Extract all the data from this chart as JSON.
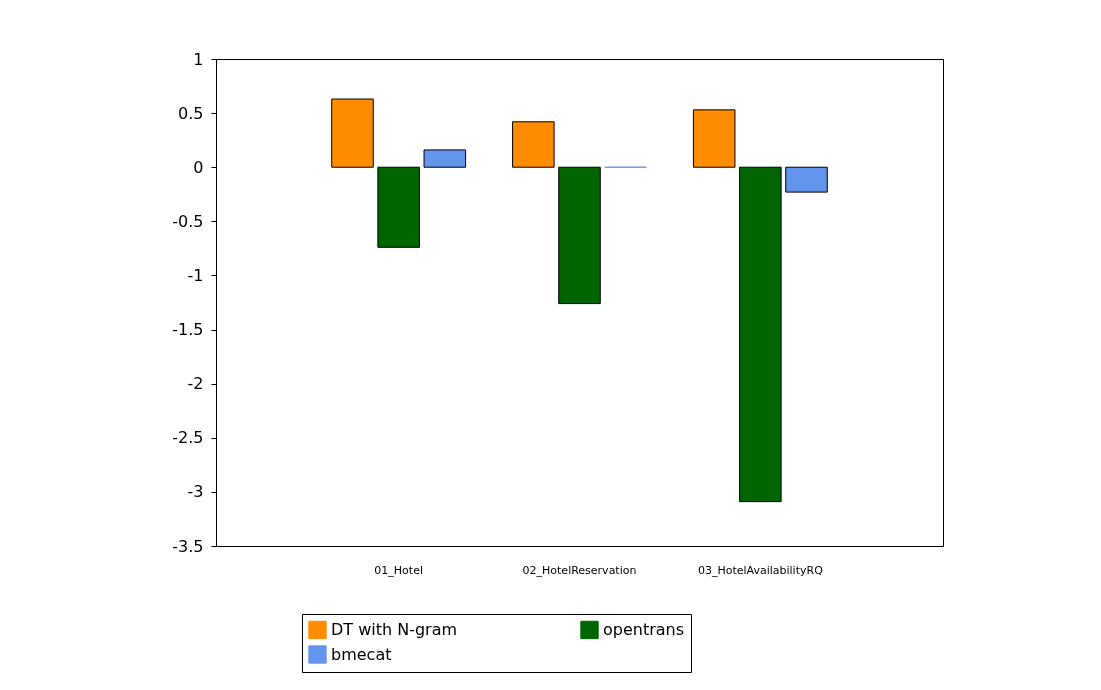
{
  "chart_data": {
    "type": "bar",
    "categories": [
      "01_Hotel",
      "02_HotelReservation",
      "03_HotelAvailabilityRQ"
    ],
    "series": [
      {
        "name": "DT with N-gram",
        "color": "#ff8c00",
        "values": [
          0.63,
          0.42,
          0.53
        ]
      },
      {
        "name": "opentrans",
        "color": "#006400",
        "values": [
          -0.74,
          -1.26,
          -3.09
        ]
      },
      {
        "name": "bmecat",
        "color": "#6495ed",
        "values": [
          0.16,
          0,
          -0.23
        ]
      }
    ],
    "ylim": [
      -3.5,
      1
    ],
    "yticks": [
      -3.5,
      -3,
      -2.5,
      -2,
      -1.5,
      -1,
      -0.5,
      0,
      0.5,
      1
    ],
    "grid": false,
    "legend": "bottom"
  }
}
